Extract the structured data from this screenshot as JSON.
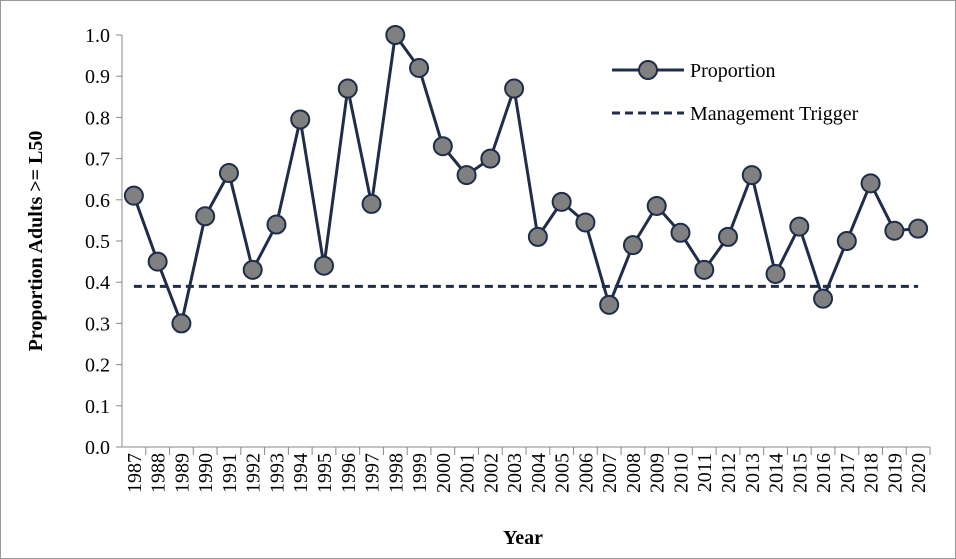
{
  "chart_data": {
    "type": "line",
    "xlabel": "Year",
    "ylabel": "Proportion Adults >= L50",
    "categories": [
      "1987",
      "1988",
      "1989",
      "1990",
      "1991",
      "1992",
      "1993",
      "1994",
      "1995",
      "1996",
      "1997",
      "1998",
      "1999",
      "2000",
      "2001",
      "2002",
      "2003",
      "2004",
      "2005",
      "2006",
      "2007",
      "2008",
      "2009",
      "2010",
      "2011",
      "2012",
      "2013",
      "2014",
      "2015",
      "2016",
      "2017",
      "2018",
      "2019",
      "2020"
    ],
    "series": [
      {
        "name": "Proportion",
        "color": "#1f2d4a",
        "marker": "circle",
        "marker_color": "#808080",
        "values": [
          0.61,
          0.45,
          0.3,
          0.56,
          0.665,
          0.43,
          0.54,
          0.795,
          0.44,
          0.87,
          0.59,
          1.0,
          0.92,
          0.73,
          0.66,
          0.7,
          0.87,
          0.51,
          0.595,
          0.545,
          0.345,
          0.49,
          0.585,
          0.52,
          0.43,
          0.51,
          0.66,
          0.42,
          0.535,
          0.36,
          0.5,
          0.64,
          0.525,
          0.53
        ]
      },
      {
        "name": "Management Trigger",
        "color": "#1f2d4a",
        "dashed": true,
        "values": [
          0.39,
          0.39,
          0.39,
          0.39,
          0.39,
          0.39,
          0.39,
          0.39,
          0.39,
          0.39,
          0.39,
          0.39,
          0.39,
          0.39,
          0.39,
          0.39,
          0.39,
          0.39,
          0.39,
          0.39,
          0.39,
          0.39,
          0.39,
          0.39,
          0.39,
          0.39,
          0.39,
          0.39,
          0.39,
          0.39,
          0.39,
          0.39,
          0.39,
          0.39
        ]
      }
    ],
    "ylim": [
      0,
      1
    ],
    "yticks": [
      {
        "value": 0,
        "label": "0.0"
      },
      0.1,
      0.2,
      0.3,
      0.4,
      0.5,
      0.6,
      0.7,
      0.8,
      0.9,
      {
        "value": 1,
        "label": "1.0"
      }
    ],
    "legend": "upper right"
  }
}
